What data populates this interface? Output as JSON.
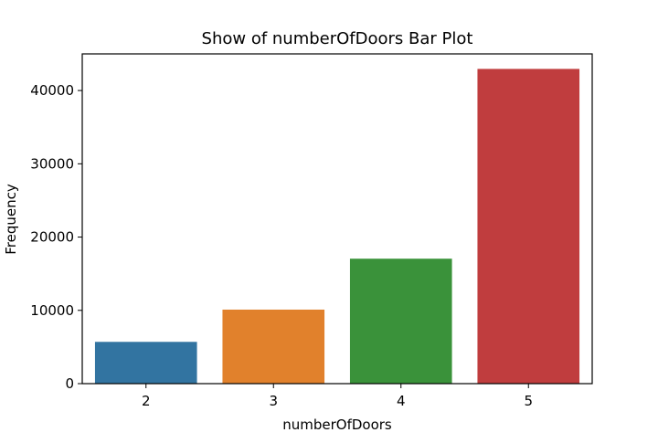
{
  "chart_data": {
    "type": "bar",
    "title": "Show of numberOfDoors Bar Plot",
    "xlabel": "numberOfDoors",
    "ylabel": "Frequency",
    "categories": [
      "2",
      "3",
      "4",
      "5"
    ],
    "values": [
      5700,
      10100,
      17050,
      42950
    ],
    "ylim": [
      0,
      45000
    ],
    "yticks": [
      0,
      10000,
      20000,
      30000,
      40000
    ],
    "colors": [
      "#3274a1",
      "#e1812c",
      "#3a923a",
      "#c03d3e"
    ],
    "grid": false,
    "legend": "none"
  }
}
